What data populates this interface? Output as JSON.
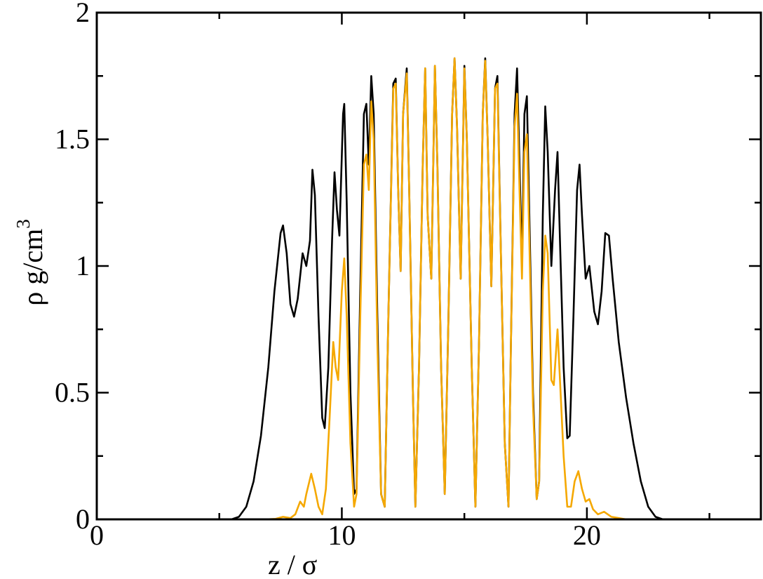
{
  "chart_data": {
    "type": "line",
    "title": "",
    "xlabel": "z / σ",
    "ylabel_main": "ρ g/cm",
    "ylabel_sup": "3",
    "xlim": [
      0,
      27.1
    ],
    "ylim": [
      0,
      2
    ],
    "x_ticks": [
      0,
      10,
      20
    ],
    "x_tick_labels": [
      "0",
      "10",
      "20"
    ],
    "x_minor_step": 5,
    "y_ticks": [
      0,
      0.5,
      1,
      1.5,
      2
    ],
    "y_tick_labels": [
      "0",
      "0.5",
      "1",
      "1.5",
      "2"
    ],
    "y_minor_step": 0.25,
    "grid": false,
    "legend": "none",
    "series": [
      {
        "color": "#000000",
        "points": [
          [
            0,
            0
          ],
          [
            5.5,
            0
          ],
          [
            5.8,
            0.01
          ],
          [
            6.1,
            0.05
          ],
          [
            6.4,
            0.15
          ],
          [
            6.7,
            0.33
          ],
          [
            7.0,
            0.6
          ],
          [
            7.25,
            0.9
          ],
          [
            7.5,
            1.13
          ],
          [
            7.6,
            1.16
          ],
          [
            7.75,
            1.05
          ],
          [
            7.9,
            0.85
          ],
          [
            8.05,
            0.8
          ],
          [
            8.2,
            0.87
          ],
          [
            8.4,
            1.05
          ],
          [
            8.55,
            1.0
          ],
          [
            8.7,
            1.1
          ],
          [
            8.8,
            1.38
          ],
          [
            8.9,
            1.28
          ],
          [
            9.05,
            0.8
          ],
          [
            9.2,
            0.4
          ],
          [
            9.3,
            0.36
          ],
          [
            9.45,
            0.6
          ],
          [
            9.6,
            1.1
          ],
          [
            9.7,
            1.37
          ],
          [
            9.8,
            1.22
          ],
          [
            9.9,
            1.12
          ],
          [
            10.05,
            1.6
          ],
          [
            10.1,
            1.64
          ],
          [
            10.2,
            1.25
          ],
          [
            10.35,
            0.5
          ],
          [
            10.5,
            0.1
          ],
          [
            10.6,
            0.12
          ],
          [
            10.75,
            0.9
          ],
          [
            10.9,
            1.6
          ],
          [
            11.0,
            1.64
          ],
          [
            11.1,
            1.4
          ],
          [
            11.2,
            1.75
          ],
          [
            11.3,
            1.6
          ],
          [
            11.45,
            0.8
          ],
          [
            11.6,
            0.1
          ],
          [
            11.75,
            0.05
          ],
          [
            11.9,
            0.8
          ],
          [
            12.1,
            1.72
          ],
          [
            12.2,
            1.74
          ],
          [
            12.3,
            1.3
          ],
          [
            12.4,
            0.98
          ],
          [
            12.5,
            1.6
          ],
          [
            12.65,
            1.78
          ],
          [
            12.75,
            1.3
          ],
          [
            12.9,
            0.5
          ],
          [
            13.0,
            0.05
          ],
          [
            13.15,
            0.6
          ],
          [
            13.3,
            1.4
          ],
          [
            13.4,
            1.78
          ],
          [
            13.5,
            1.2
          ],
          [
            13.65,
            0.95
          ],
          [
            13.8,
            1.79
          ],
          [
            13.9,
            1.4
          ],
          [
            14.05,
            0.6
          ],
          [
            14.2,
            0.1
          ],
          [
            14.35,
            0.8
          ],
          [
            14.5,
            1.6
          ],
          [
            14.6,
            1.82
          ],
          [
            14.7,
            1.55
          ],
          [
            14.85,
            0.95
          ],
          [
            15.0,
            1.79
          ],
          [
            15.1,
            1.5
          ],
          [
            15.3,
            0.6
          ],
          [
            15.45,
            0.05
          ],
          [
            15.6,
            0.7
          ],
          [
            15.75,
            1.6
          ],
          [
            15.85,
            1.82
          ],
          [
            15.95,
            1.5
          ],
          [
            16.1,
            0.92
          ],
          [
            16.25,
            1.7
          ],
          [
            16.35,
            1.75
          ],
          [
            16.5,
            1.0
          ],
          [
            16.65,
            0.3
          ],
          [
            16.8,
            0.05
          ],
          [
            16.9,
            0.7
          ],
          [
            17.05,
            1.6
          ],
          [
            17.15,
            1.78
          ],
          [
            17.25,
            1.4
          ],
          [
            17.35,
            1.0
          ],
          [
            17.45,
            1.6
          ],
          [
            17.55,
            1.67
          ],
          [
            17.65,
            1.2
          ],
          [
            17.8,
            0.5
          ],
          [
            17.95,
            0.08
          ],
          [
            18.05,
            0.15
          ],
          [
            18.2,
            1.2
          ],
          [
            18.3,
            1.63
          ],
          [
            18.4,
            1.45
          ],
          [
            18.55,
            1.0
          ],
          [
            18.7,
            1.3
          ],
          [
            18.8,
            1.45
          ],
          [
            18.9,
            1.1
          ],
          [
            19.05,
            0.6
          ],
          [
            19.2,
            0.32
          ],
          [
            19.3,
            0.33
          ],
          [
            19.45,
            0.8
          ],
          [
            19.6,
            1.3
          ],
          [
            19.7,
            1.4
          ],
          [
            19.8,
            1.2
          ],
          [
            19.95,
            0.95
          ],
          [
            20.1,
            1.0
          ],
          [
            20.3,
            0.82
          ],
          [
            20.45,
            0.77
          ],
          [
            20.6,
            0.9
          ],
          [
            20.75,
            1.13
          ],
          [
            20.9,
            1.12
          ],
          [
            21.05,
            0.95
          ],
          [
            21.3,
            0.7
          ],
          [
            21.6,
            0.48
          ],
          [
            21.9,
            0.3
          ],
          [
            22.2,
            0.15
          ],
          [
            22.5,
            0.05
          ],
          [
            22.8,
            0.01
          ],
          [
            23.1,
            0
          ],
          [
            27.1,
            0
          ]
        ]
      },
      {
        "color": "#f5a800",
        "points": [
          [
            0,
            0
          ],
          [
            6.9,
            0
          ],
          [
            7.3,
            0.002
          ],
          [
            7.6,
            0.01
          ],
          [
            7.9,
            0.005
          ],
          [
            8.1,
            0.02
          ],
          [
            8.3,
            0.07
          ],
          [
            8.45,
            0.05
          ],
          [
            8.55,
            0.1
          ],
          [
            8.75,
            0.18
          ],
          [
            8.9,
            0.12
          ],
          [
            9.05,
            0.05
          ],
          [
            9.2,
            0.02
          ],
          [
            9.35,
            0.12
          ],
          [
            9.5,
            0.4
          ],
          [
            9.65,
            0.7
          ],
          [
            9.75,
            0.6
          ],
          [
            9.85,
            0.55
          ],
          [
            10.0,
            0.9
          ],
          [
            10.1,
            1.03
          ],
          [
            10.2,
            0.8
          ],
          [
            10.35,
            0.3
          ],
          [
            10.5,
            0.05
          ],
          [
            10.6,
            0.1
          ],
          [
            10.75,
            0.8
          ],
          [
            10.9,
            1.4
          ],
          [
            11.0,
            1.44
          ],
          [
            11.1,
            1.3
          ],
          [
            11.2,
            1.65
          ],
          [
            11.3,
            1.5
          ],
          [
            11.45,
            0.7
          ],
          [
            11.6,
            0.1
          ],
          [
            11.75,
            0.05
          ],
          [
            11.9,
            0.8
          ],
          [
            12.1,
            1.7
          ],
          [
            12.2,
            1.72
          ],
          [
            12.3,
            1.3
          ],
          [
            12.4,
            0.98
          ],
          [
            12.5,
            1.6
          ],
          [
            12.65,
            1.76
          ],
          [
            12.75,
            1.3
          ],
          [
            12.9,
            0.5
          ],
          [
            13.0,
            0.05
          ],
          [
            13.15,
            0.6
          ],
          [
            13.3,
            1.4
          ],
          [
            13.4,
            1.78
          ],
          [
            13.5,
            1.2
          ],
          [
            13.65,
            0.95
          ],
          [
            13.8,
            1.79
          ],
          [
            13.9,
            1.4
          ],
          [
            14.05,
            0.6
          ],
          [
            14.2,
            0.1
          ],
          [
            14.35,
            0.8
          ],
          [
            14.5,
            1.6
          ],
          [
            14.6,
            1.82
          ],
          [
            14.7,
            1.55
          ],
          [
            14.85,
            0.95
          ],
          [
            15.0,
            1.78
          ],
          [
            15.1,
            1.5
          ],
          [
            15.3,
            0.6
          ],
          [
            15.45,
            0.05
          ],
          [
            15.6,
            0.7
          ],
          [
            15.75,
            1.6
          ],
          [
            15.85,
            1.81
          ],
          [
            15.95,
            1.5
          ],
          [
            16.1,
            0.92
          ],
          [
            16.25,
            1.7
          ],
          [
            16.35,
            1.72
          ],
          [
            16.5,
            1.0
          ],
          [
            16.65,
            0.3
          ],
          [
            16.8,
            0.05
          ],
          [
            16.9,
            0.7
          ],
          [
            17.05,
            1.55
          ],
          [
            17.15,
            1.68
          ],
          [
            17.25,
            1.3
          ],
          [
            17.35,
            0.95
          ],
          [
            17.45,
            1.45
          ],
          [
            17.55,
            1.52
          ],
          [
            17.65,
            1.1
          ],
          [
            17.8,
            0.45
          ],
          [
            17.95,
            0.08
          ],
          [
            18.05,
            0.15
          ],
          [
            18.2,
            0.9
          ],
          [
            18.3,
            1.12
          ],
          [
            18.4,
            1.05
          ],
          [
            18.55,
            0.55
          ],
          [
            18.65,
            0.53
          ],
          [
            18.8,
            0.75
          ],
          [
            18.9,
            0.55
          ],
          [
            19.05,
            0.25
          ],
          [
            19.2,
            0.05
          ],
          [
            19.35,
            0.05
          ],
          [
            19.5,
            0.15
          ],
          [
            19.65,
            0.19
          ],
          [
            19.8,
            0.12
          ],
          [
            19.95,
            0.07
          ],
          [
            20.1,
            0.08
          ],
          [
            20.25,
            0.04
          ],
          [
            20.45,
            0.02
          ],
          [
            20.7,
            0.03
          ],
          [
            21.0,
            0.01
          ],
          [
            21.3,
            0.005
          ],
          [
            21.6,
            0
          ],
          [
            27.1,
            0
          ]
        ]
      }
    ]
  }
}
